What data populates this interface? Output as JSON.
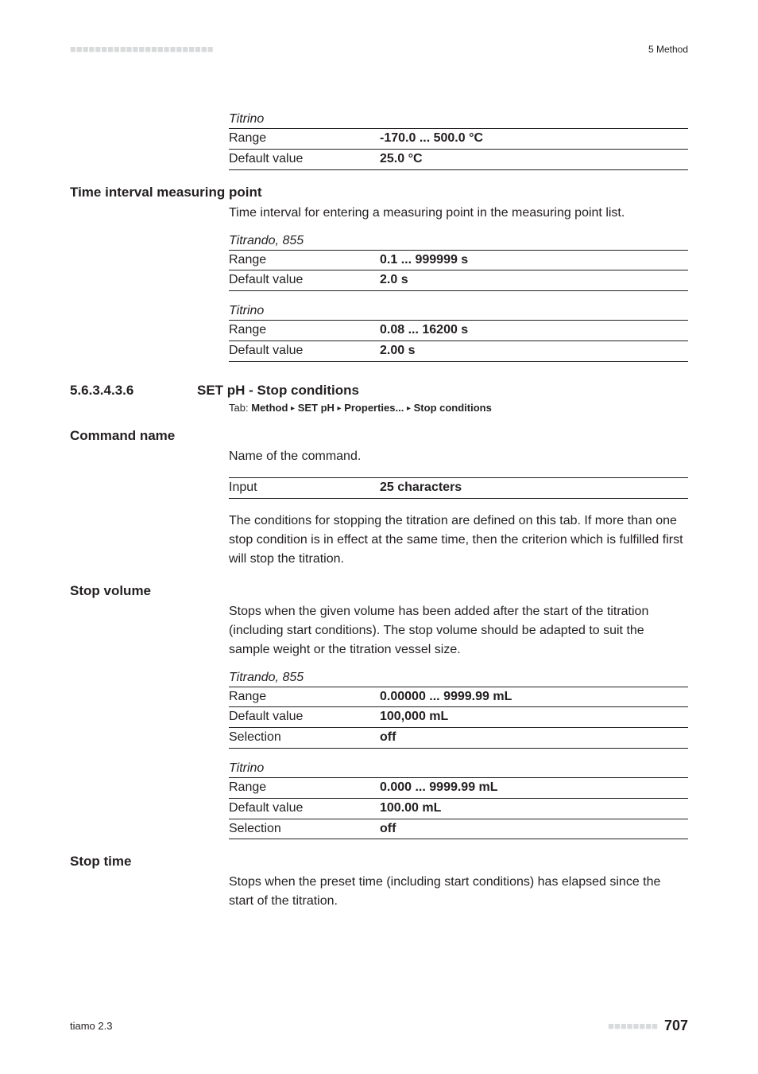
{
  "header": {
    "dashes": "■■■■■■■■■■■■■■■■■■■■■■■",
    "section": "5 Method"
  },
  "titrino_top": {
    "label": "Titrino",
    "range_key": "Range",
    "range_val": "-170.0 ... 500.0 °C",
    "default_key": "Default value",
    "default_val": "25.0 °C"
  },
  "time_interval": {
    "title": "Time interval measuring point",
    "desc": "Time interval for entering a measuring point in the measuring point list.",
    "titrando": {
      "label": "Titrando, 855",
      "range_key": "Range",
      "range_val": "0.1 ... 999999 s",
      "default_key": "Default value",
      "default_val": "2.0 s"
    },
    "titrino": {
      "label": "Titrino",
      "range_key": "Range",
      "range_val": "0.08 ... 16200 s",
      "default_key": "Default value",
      "default_val": "2.00 s"
    }
  },
  "subsection": {
    "num": "5.6.3.4.3.6",
    "title": "SET pH - Stop conditions",
    "tab_label": "Tab: ",
    "tab_a": "Method",
    "tab_b": "SET pH",
    "tab_c": "Properties...",
    "tab_d": "Stop conditions"
  },
  "command_name": {
    "title": "Command name",
    "desc": "Name of the command.",
    "input_key": "Input",
    "input_val": "25 characters",
    "after": "The conditions for stopping the titration are defined on this tab. If more than one stop condition is in effect at the same time, then the criterion which is fulfilled first will stop the titration."
  },
  "stop_volume": {
    "title": "Stop volume",
    "desc": "Stops when the given volume has been added after the start of the titration (including start conditions). The stop volume should be adapted to suit the sample weight or the titration vessel size.",
    "titrando": {
      "label": "Titrando, 855",
      "range_key": "Range",
      "range_val": "0.00000 ... 9999.99 mL",
      "default_key": "Default value",
      "default_val": "100,000 mL",
      "selection_key": "Selection",
      "selection_val": "off"
    },
    "titrino": {
      "label": "Titrino",
      "range_key": "Range",
      "range_val": "0.000 ... 9999.99 mL",
      "default_key": "Default value",
      "default_val": "100.00 mL",
      "selection_key": "Selection",
      "selection_val": "off"
    }
  },
  "stop_time": {
    "title": "Stop time",
    "desc": "Stops when the preset time (including start conditions) has elapsed since the start of the titration."
  },
  "footer": {
    "left": "tiamo 2.3",
    "dashes": "■■■■■■■■",
    "page": "707"
  }
}
